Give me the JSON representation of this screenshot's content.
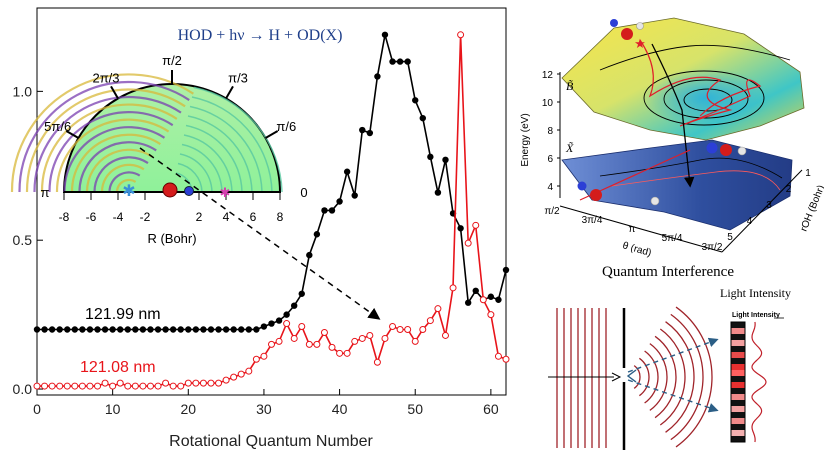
{
  "main": {
    "xlabel": "Rotational Quantum Number",
    "xticks": [
      0,
      10,
      20,
      30,
      40,
      50,
      60
    ],
    "yticks": [
      "0.0",
      "0.5",
      "1.0"
    ],
    "xlim": [
      0,
      62
    ],
    "ylim": [
      -0.02,
      1.28
    ]
  },
  "inset": {
    "title": "HOD + hν → H + OD(X)",
    "xlabel": "R (Bohr)",
    "xticks": [
      "-8",
      "-6",
      "-4",
      "-2",
      "2",
      "4",
      "6",
      "8"
    ],
    "angle_labels": [
      "0",
      "π/6",
      "π/3",
      "π/2",
      "2π/3",
      "5π/6",
      "π"
    ]
  },
  "surface": {
    "z_label": "Energy (eV)",
    "z_ticks": [
      "4",
      "6",
      "8",
      "10",
      "12"
    ],
    "theta_label": "θ (rad)",
    "theta_ticks": [
      "π/2",
      "3π/4",
      "π",
      "5π/4",
      "3π/2"
    ],
    "r_label": "rOH (Bohr)",
    "r_ticks": [
      "1",
      "2",
      "3",
      "4",
      "5"
    ],
    "upper_state": "B̃",
    "lower_state": "X̃",
    "caption": "Quantum Interference"
  },
  "slit": {
    "label": "Light Intensity",
    "screen_label": "Light Intensity"
  },
  "colors": {
    "black_series": "#000000",
    "red_series": "#e8141a",
    "surface_up": "#f2e03a",
    "surface_low": "#2c4a9a"
  },
  "chart_data": {
    "type": "line",
    "xlabel": "Rotational Quantum Number",
    "ylabel": "",
    "xlim": [
      0,
      62
    ],
    "ylim": [
      -0.02,
      1.28
    ],
    "series": [
      {
        "name": "121.99 nm",
        "marker": "filled-circle",
        "color": "#000000",
        "x": [
          0,
          1,
          2,
          3,
          4,
          5,
          6,
          7,
          8,
          9,
          10,
          11,
          12,
          13,
          14,
          15,
          16,
          17,
          18,
          19,
          20,
          21,
          22,
          23,
          24,
          25,
          26,
          27,
          28,
          29,
          30,
          31,
          32,
          33,
          34,
          35,
          36,
          37,
          38,
          39,
          40,
          41,
          42,
          43,
          44,
          45,
          46,
          47,
          48,
          49,
          50,
          51,
          52,
          53,
          54,
          55,
          56,
          57,
          58,
          59,
          60,
          61,
          62
        ],
        "values": [
          0.2,
          0.2,
          0.2,
          0.2,
          0.2,
          0.2,
          0.2,
          0.2,
          0.2,
          0.2,
          0.2,
          0.2,
          0.2,
          0.2,
          0.2,
          0.2,
          0.2,
          0.2,
          0.2,
          0.2,
          0.2,
          0.2,
          0.2,
          0.2,
          0.2,
          0.2,
          0.2,
          0.2,
          0.2,
          0.2,
          0.21,
          0.22,
          0.23,
          0.25,
          0.28,
          0.32,
          0.45,
          0.52,
          0.6,
          0.6,
          0.63,
          0.73,
          0.65,
          0.87,
          0.86,
          1.05,
          1.19,
          1.1,
          1.1,
          1.1,
          0.97,
          0.91,
          0.78,
          0.66,
          0.77,
          0.59,
          0.54,
          0.29,
          0.33,
          0.3,
          0.31,
          0.3,
          0.4
        ]
      },
      {
        "name": "121.08 nm",
        "marker": "open-circle",
        "color": "#e8141a",
        "x": [
          0,
          1,
          2,
          3,
          4,
          5,
          6,
          7,
          8,
          9,
          10,
          11,
          12,
          13,
          14,
          15,
          16,
          17,
          18,
          19,
          20,
          21,
          22,
          23,
          24,
          25,
          26,
          27,
          28,
          29,
          30,
          31,
          32,
          33,
          34,
          35,
          36,
          37,
          38,
          39,
          40,
          41,
          42,
          43,
          44,
          45,
          46,
          47,
          48,
          49,
          50,
          51,
          52,
          53,
          54,
          55,
          56,
          57,
          58,
          59,
          60,
          61,
          62
        ],
        "values": [
          0.01,
          0.01,
          0.01,
          0.01,
          0.01,
          0.01,
          0.01,
          0.01,
          0.01,
          0.02,
          0.01,
          0.02,
          0.01,
          0.01,
          0.01,
          0.01,
          0.01,
          0.02,
          0.01,
          0.01,
          0.02,
          0.02,
          0.02,
          0.02,
          0.02,
          0.03,
          0.04,
          0.05,
          0.06,
          0.1,
          0.11,
          0.15,
          0.16,
          0.22,
          0.17,
          0.21,
          0.15,
          0.15,
          0.19,
          0.14,
          0.12,
          0.12,
          0.16,
          0.17,
          0.18,
          0.09,
          0.17,
          0.21,
          0.2,
          0.2,
          0.16,
          0.2,
          0.23,
          0.27,
          0.18,
          0.34,
          1.19,
          0.49,
          0.55,
          0.3,
          0.25,
          0.11,
          0.1
        ]
      }
    ]
  }
}
